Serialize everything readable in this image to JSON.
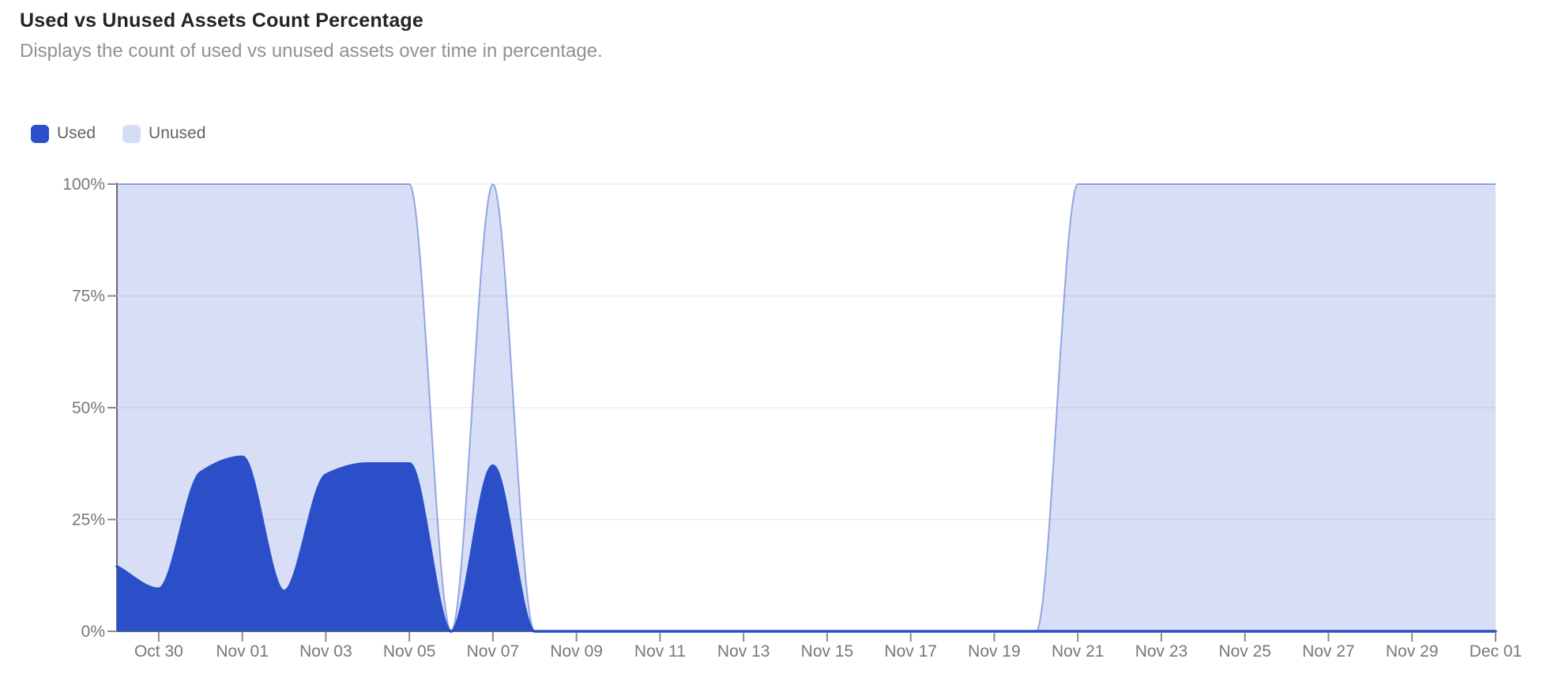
{
  "header": {
    "title": "Used vs Unused Assets Count Percentage",
    "subtitle": "Displays the count of used vs unused assets over time in percentage."
  },
  "legend": {
    "items": [
      {
        "label": "Used",
        "swatch_color": "#2a4fc8"
      },
      {
        "label": "Unused",
        "swatch_color": "#d4ddf5"
      }
    ]
  },
  "colors": {
    "used": "#2a4fc8",
    "unused_swatch": "#d4ddf5",
    "axis": "#6e6e6e",
    "tick": "#8b8b8b",
    "grid": "#ededef",
    "label": "#75787c"
  },
  "chart_data": {
    "type": "area",
    "stacked": true,
    "units": "percent",
    "ylim": [
      0,
      100
    ],
    "grid": "horizontal",
    "legend_position": "top-left",
    "x": [
      "Oct 29",
      "Oct 30",
      "Oct 31",
      "Nov 01",
      "Nov 02",
      "Nov 03",
      "Nov 04",
      "Nov 05",
      "Nov 06",
      "Nov 07",
      "Nov 08",
      "Nov 09",
      "Nov 10",
      "Nov 11",
      "Nov 12",
      "Nov 13",
      "Nov 14",
      "Nov 15",
      "Nov 16",
      "Nov 17",
      "Nov 18",
      "Nov 19",
      "Nov 20",
      "Nov 21",
      "Nov 22",
      "Nov 23",
      "Nov 24",
      "Nov 25",
      "Nov 26",
      "Nov 27",
      "Nov 28",
      "Nov 29",
      "Nov 30",
      "Dec 01"
    ],
    "series": [
      {
        "name": "Used",
        "values": [
          14.5,
          9.5,
          35.5,
          39,
          9,
          35,
          37.5,
          37.5,
          0,
          37,
          0,
          0,
          0,
          0,
          0,
          0,
          0,
          0,
          0,
          0,
          0,
          0,
          0,
          0,
          0,
          0,
          0,
          0,
          0,
          0,
          0,
          0,
          0,
          0
        ]
      },
      {
        "name": "Unused",
        "values": [
          85.5,
          90.5,
          64.5,
          61,
          91,
          65,
          62.5,
          62.5,
          0,
          63,
          0,
          0,
          0,
          0,
          0,
          0,
          0,
          0,
          0,
          0,
          0,
          0,
          0,
          100,
          100,
          100,
          100,
          100,
          100,
          100,
          100,
          100,
          100,
          100
        ]
      }
    ],
    "yticks": [
      {
        "value": 0,
        "label": "0%"
      },
      {
        "value": 25,
        "label": "25%"
      },
      {
        "value": 50,
        "label": "50%"
      },
      {
        "value": 75,
        "label": "75%"
      },
      {
        "value": 100,
        "label": "100%"
      }
    ],
    "xticks": [
      "Oct 30",
      "Nov 01",
      "Nov 03",
      "Nov 05",
      "Nov 07",
      "Nov 09",
      "Nov 11",
      "Nov 13",
      "Nov 15",
      "Nov 17",
      "Nov 19",
      "Nov 21",
      "Nov 23",
      "Nov 25",
      "Nov 27",
      "Nov 29",
      "Dec 01"
    ]
  }
}
